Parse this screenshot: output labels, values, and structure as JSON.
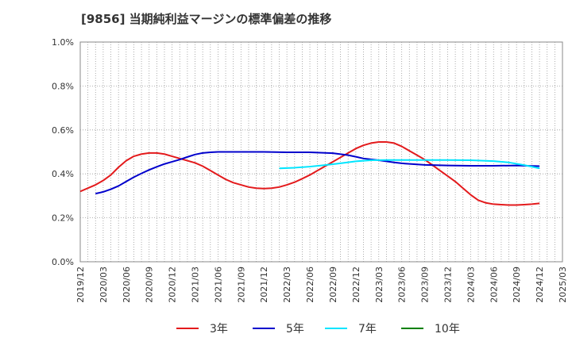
{
  "chart_data": {
    "type": "line",
    "title": "[9856]  当期純利益マージンの標準偏差の推移",
    "ylim": [
      0,
      1.0
    ],
    "y_ticks": [
      "0.0%",
      "0.2%",
      "0.4%",
      "0.6%",
      "0.8%",
      "1.0%"
    ],
    "x_ticks": [
      "2019/12",
      "2020/03",
      "2020/06",
      "2020/09",
      "2020/12",
      "2021/03",
      "2021/06",
      "2021/09",
      "2021/12",
      "2022/03",
      "2022/06",
      "2022/09",
      "2022/12",
      "2023/03",
      "2023/06",
      "2023/09",
      "2023/12",
      "2024/03",
      "2024/06",
      "2024/09",
      "2024/12",
      "2025/03"
    ],
    "x_range": [
      "2019/12",
      "2025/03"
    ],
    "grid": "dotted",
    "legend_position": "bottom",
    "series": [
      {
        "name": "3年",
        "color": "#e31a1c",
        "points": [
          [
            "2019/12",
            0.32
          ],
          [
            "2020/01",
            0.335
          ],
          [
            "2020/02",
            0.35
          ],
          [
            "2020/03",
            0.37
          ],
          [
            "2020/04",
            0.395
          ],
          [
            "2020/05",
            0.43
          ],
          [
            "2020/06",
            0.46
          ],
          [
            "2020/07",
            0.48
          ],
          [
            "2020/08",
            0.49
          ],
          [
            "2020/09",
            0.495
          ],
          [
            "2020/10",
            0.495
          ],
          [
            "2020/11",
            0.49
          ],
          [
            "2020/12",
            0.48
          ],
          [
            "2021/01",
            0.47
          ],
          [
            "2021/02",
            0.46
          ],
          [
            "2021/03",
            0.45
          ],
          [
            "2021/04",
            0.435
          ],
          [
            "2021/05",
            0.415
          ],
          [
            "2021/06",
            0.395
          ],
          [
            "2021/07",
            0.375
          ],
          [
            "2021/08",
            0.36
          ],
          [
            "2021/09",
            0.35
          ],
          [
            "2021/10",
            0.34
          ],
          [
            "2021/11",
            0.335
          ],
          [
            "2021/12",
            0.333
          ],
          [
            "2022/01",
            0.335
          ],
          [
            "2022/02",
            0.34
          ],
          [
            "2022/03",
            0.35
          ],
          [
            "2022/04",
            0.362
          ],
          [
            "2022/05",
            0.378
          ],
          [
            "2022/06",
            0.395
          ],
          [
            "2022/07",
            0.415
          ],
          [
            "2022/08",
            0.435
          ],
          [
            "2022/09",
            0.455
          ],
          [
            "2022/10",
            0.475
          ],
          [
            "2022/11",
            0.495
          ],
          [
            "2022/12",
            0.515
          ],
          [
            "2023/01",
            0.53
          ],
          [
            "2023/02",
            0.54
          ],
          [
            "2023/03",
            0.545
          ],
          [
            "2023/04",
            0.545
          ],
          [
            "2023/05",
            0.54
          ],
          [
            "2023/06",
            0.525
          ],
          [
            "2023/07",
            0.505
          ],
          [
            "2023/08",
            0.485
          ],
          [
            "2023/09",
            0.465
          ],
          [
            "2023/10",
            0.44
          ],
          [
            "2023/11",
            0.415
          ],
          [
            "2023/12",
            0.39
          ],
          [
            "2024/01",
            0.365
          ],
          [
            "2024/02",
            0.335
          ],
          [
            "2024/03",
            0.305
          ],
          [
            "2024/04",
            0.28
          ],
          [
            "2024/05",
            0.268
          ],
          [
            "2024/06",
            0.262
          ],
          [
            "2024/07",
            0.26
          ],
          [
            "2024/08",
            0.258
          ],
          [
            "2024/09",
            0.258
          ],
          [
            "2024/10",
            0.26
          ],
          [
            "2024/11",
            0.262
          ],
          [
            "2024/12",
            0.266
          ]
        ]
      },
      {
        "name": "5年",
        "color": "#0000cc",
        "points": [
          [
            "2020/02",
            0.31
          ],
          [
            "2020/03",
            0.318
          ],
          [
            "2020/04",
            0.33
          ],
          [
            "2020/05",
            0.345
          ],
          [
            "2020/06",
            0.365
          ],
          [
            "2020/07",
            0.385
          ],
          [
            "2020/08",
            0.402
          ],
          [
            "2020/09",
            0.418
          ],
          [
            "2020/10",
            0.432
          ],
          [
            "2020/11",
            0.445
          ],
          [
            "2020/12",
            0.455
          ],
          [
            "2021/01",
            0.465
          ],
          [
            "2021/02",
            0.477
          ],
          [
            "2021/03",
            0.488
          ],
          [
            "2021/04",
            0.495
          ],
          [
            "2021/05",
            0.498
          ],
          [
            "2021/06",
            0.5
          ],
          [
            "2021/09",
            0.5
          ],
          [
            "2021/12",
            0.5
          ],
          [
            "2022/03",
            0.498
          ],
          [
            "2022/06",
            0.498
          ],
          [
            "2022/09",
            0.494
          ],
          [
            "2022/11",
            0.485
          ],
          [
            "2022/12",
            0.478
          ],
          [
            "2023/01",
            0.47
          ],
          [
            "2023/03",
            0.462
          ],
          [
            "2023/05",
            0.452
          ],
          [
            "2023/06",
            0.448
          ],
          [
            "2023/08",
            0.443
          ],
          [
            "2023/09",
            0.441
          ],
          [
            "2023/12",
            0.438
          ],
          [
            "2024/03",
            0.437
          ],
          [
            "2024/06",
            0.437
          ],
          [
            "2024/09",
            0.438
          ],
          [
            "2024/12",
            0.435
          ]
        ]
      },
      {
        "name": "7年",
        "color": "#00e5ff",
        "points": [
          [
            "2022/02",
            0.425
          ],
          [
            "2022/04",
            0.428
          ],
          [
            "2022/06",
            0.433
          ],
          [
            "2022/08",
            0.44
          ],
          [
            "2022/10",
            0.448
          ],
          [
            "2022/12",
            0.457
          ],
          [
            "2023/02",
            0.462
          ],
          [
            "2023/04",
            0.463
          ],
          [
            "2023/06",
            0.463
          ],
          [
            "2023/09",
            0.463
          ],
          [
            "2023/12",
            0.463
          ],
          [
            "2024/03",
            0.462
          ],
          [
            "2024/06",
            0.458
          ],
          [
            "2024/08",
            0.452
          ],
          [
            "2024/10",
            0.44
          ],
          [
            "2024/12",
            0.425
          ]
        ]
      },
      {
        "name": "10年",
        "color": "#008000",
        "points": []
      }
    ]
  }
}
